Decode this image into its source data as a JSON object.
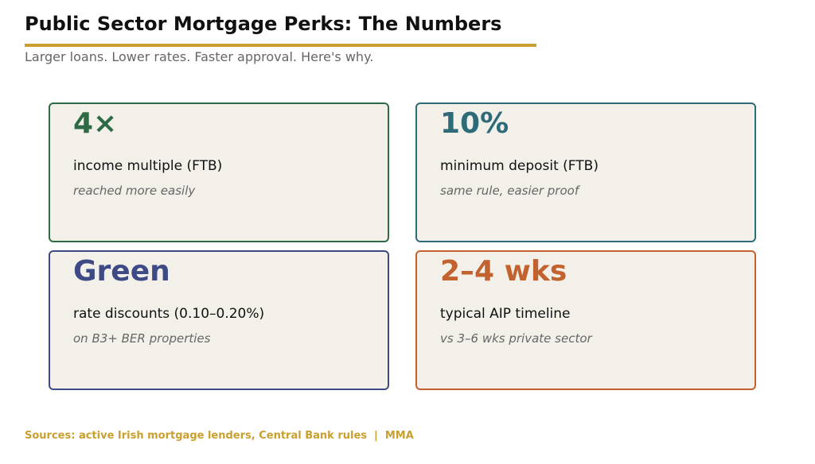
{
  "header": {
    "title": "Public Sector Mortgage Perks: The Numbers",
    "subtitle": "Larger loans. Lower rates. Faster approval. Here's why."
  },
  "cards": [
    {
      "stat": "4×",
      "label": "income multiple (FTB)",
      "note": "reached more easily"
    },
    {
      "stat": "10%",
      "label": "minimum deposit (FTB)",
      "note": "same rule, easier proof"
    },
    {
      "stat": "Green",
      "label": "rate discounts (0.10–0.20%)",
      "note": "on B3+ BER properties"
    },
    {
      "stat": "2–4 wks",
      "label": "typical AIP timeline",
      "note": "vs 3–6 wks private sector"
    }
  ],
  "footer": {
    "source": "Sources: active Irish mortgage lenders, Central Bank rules  |  MMA"
  }
}
